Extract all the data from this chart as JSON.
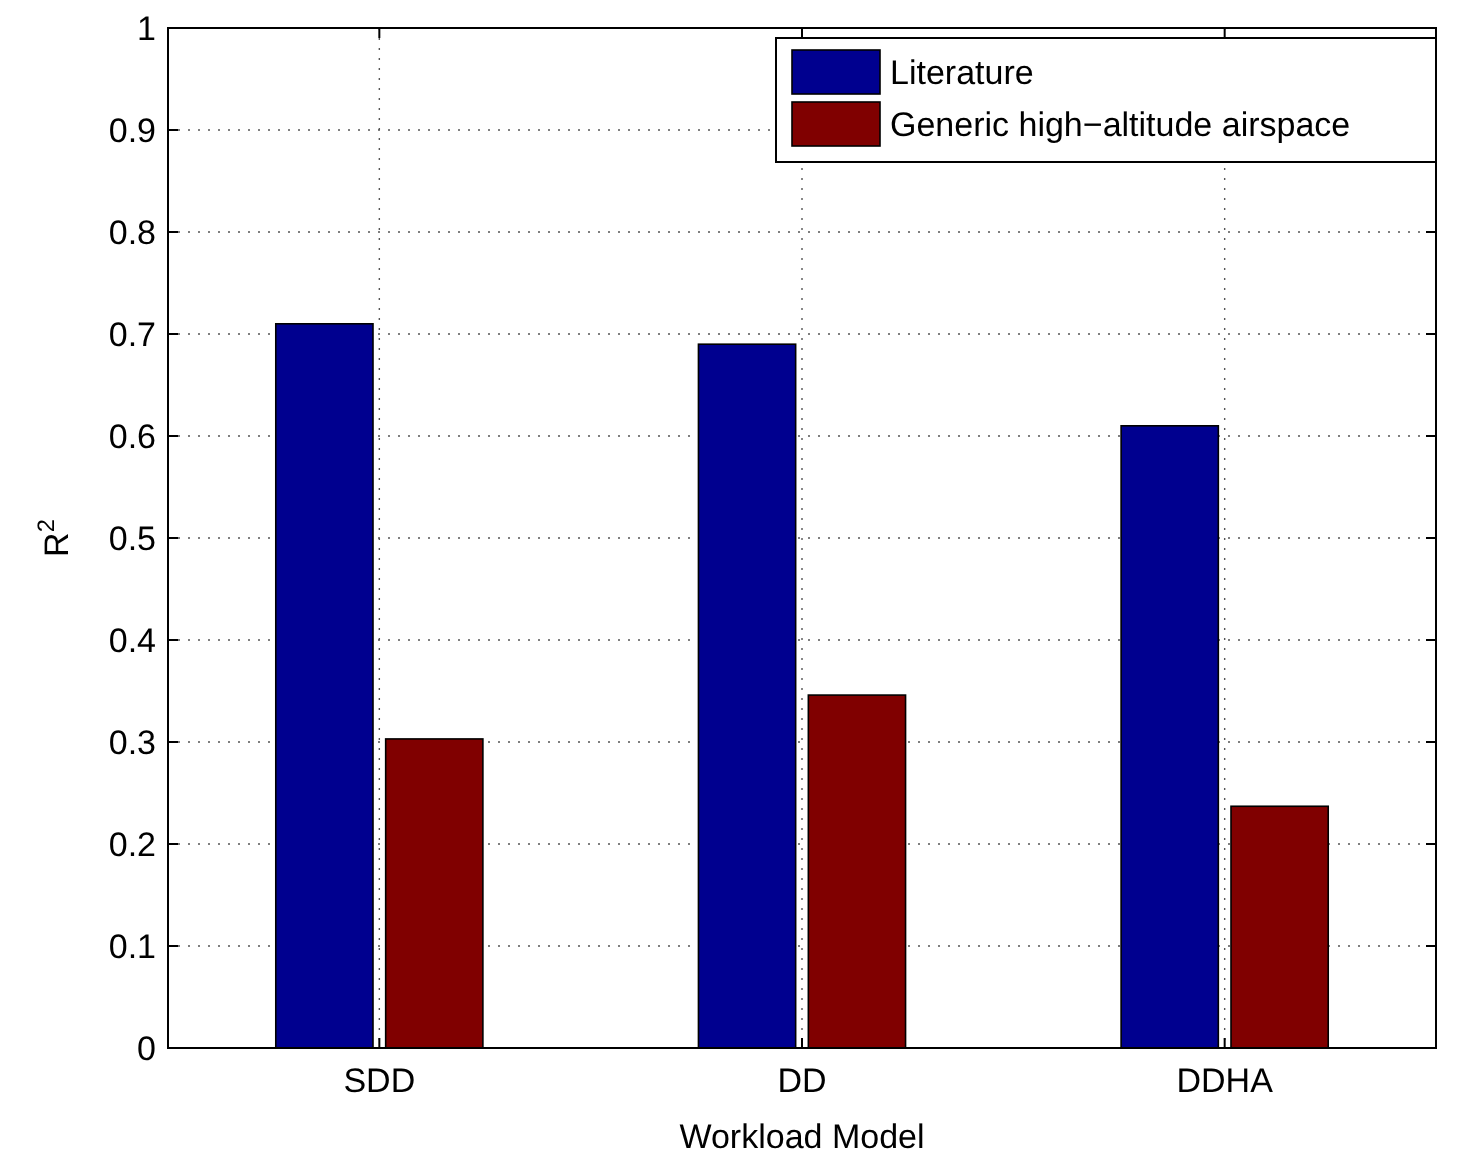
{
  "chart_data": {
    "type": "bar",
    "xlabel": "Workload Model",
    "ylabel": "R$^{2}$",
    "categories": [
      "SDD",
      "DD",
      "DDHA"
    ],
    "series": [
      {
        "name": "Literature",
        "color": "#00008f",
        "values": [
          0.71,
          0.69,
          0.61
        ]
      },
      {
        "name": "Generic high−altitude airspace",
        "color": "#800000",
        "values": [
          0.303,
          0.346,
          0.237
        ]
      }
    ],
    "ylim": [
      0,
      1
    ],
    "yticks": [
      0,
      0.1,
      0.2,
      0.3,
      0.4,
      0.5,
      0.6,
      0.7,
      0.8,
      0.9,
      1
    ],
    "grid": true,
    "legend": "top right"
  }
}
